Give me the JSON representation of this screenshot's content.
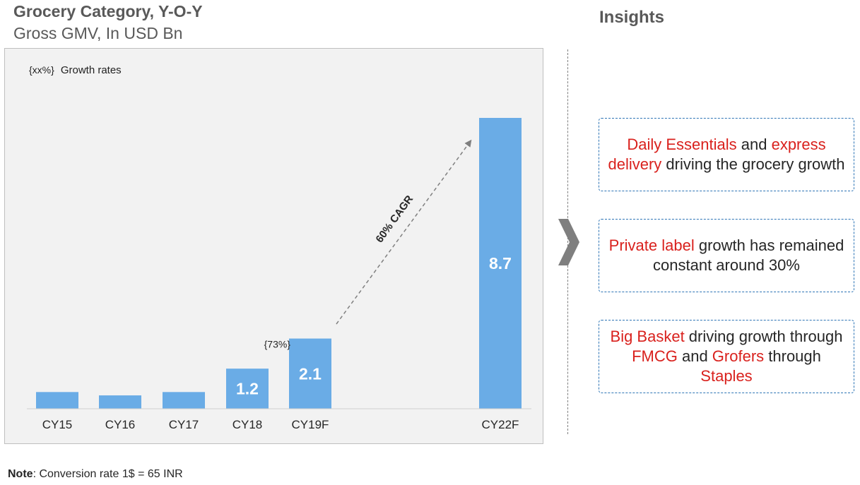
{
  "header": {
    "title": "Grocery Category, Y-O-Y",
    "subtitle": "Gross GMV, In USD Bn"
  },
  "legend": {
    "symbol": "{xx%}",
    "text": "Growth rates"
  },
  "chart_data": {
    "type": "bar",
    "categories": [
      "CY15",
      "CY16",
      "CY17",
      "CY18",
      "CY19F",
      "CY22F"
    ],
    "values": [
      0.5,
      0.4,
      0.5,
      1.2,
      2.1,
      8.7
    ],
    "data_labels": [
      "",
      "",
      "",
      "1.2",
      "2.1",
      "8.7"
    ],
    "growth_label": {
      "category": "CY19F",
      "text": "{73%}"
    },
    "cagr_annotation": "60% CAGR",
    "bar_color": "#6aace6",
    "ylim": [
      0,
      8.7
    ]
  },
  "insights": {
    "title": "Insights",
    "box1": {
      "p1": "Daily Essentials",
      "p2": " and ",
      "p3": "express delivery",
      "p4": " driving the grocery growth"
    },
    "box2": {
      "p1": "Private label",
      "p2": " growth has remained constant around 30%"
    },
    "box3": {
      "p1": "Big Basket",
      "p2": " driving growth through ",
      "p3": "FMCG",
      "p4": " and ",
      "p5": "Grofers",
      "p6": " through ",
      "p7": "Staples"
    }
  },
  "note": {
    "label": "Note",
    "text": ": Conversion rate 1$ = 65 INR"
  }
}
